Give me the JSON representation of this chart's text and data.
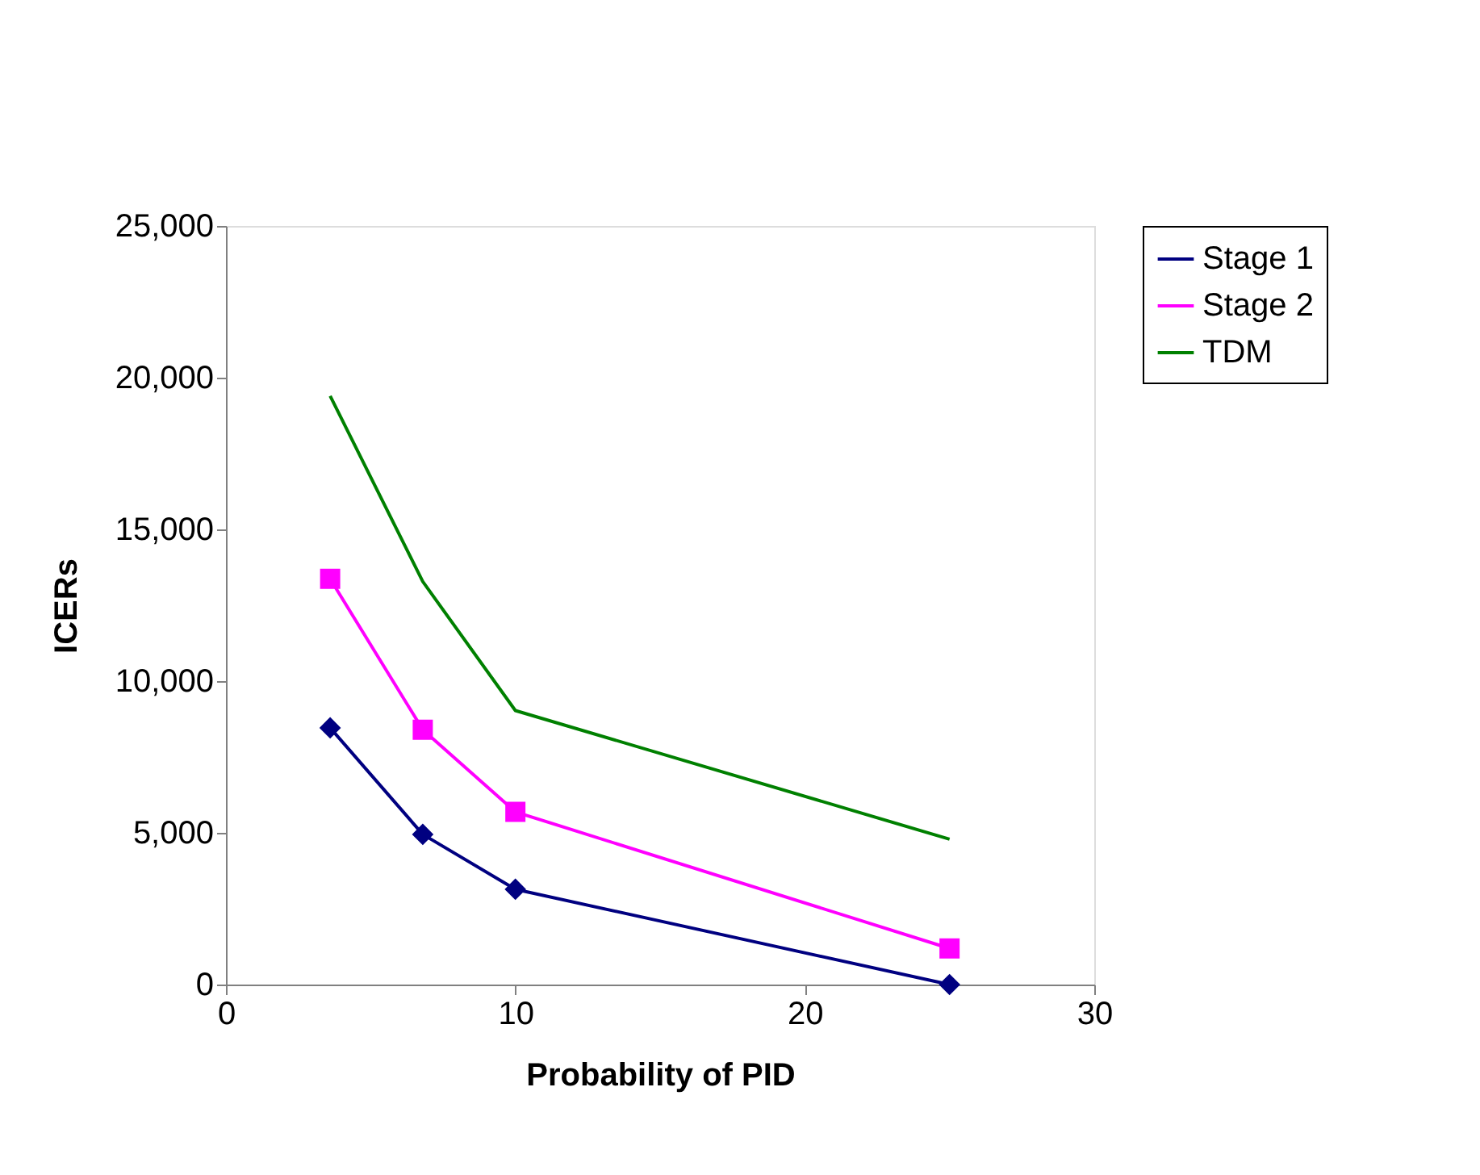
{
  "chart_data": {
    "type": "line",
    "xlabel": "Probability of PID",
    "ylabel": "ICERs",
    "x": [
      3.6,
      6.8,
      10,
      25
    ],
    "series": [
      {
        "name": "Stage 1",
        "color": "#000080",
        "marker": "diamond",
        "values": [
          8460,
          4950,
          3140,
          0
        ]
      },
      {
        "name": "Stage 2",
        "color": "#ff00ff",
        "marker": "square",
        "values": [
          13370,
          8400,
          5690,
          1190
        ]
      },
      {
        "name": "TDM",
        "color": "#008000",
        "marker": "none",
        "values": [
          19400,
          13280,
          9030,
          4790
        ]
      }
    ],
    "xlim": [
      0,
      30
    ],
    "xticks": [
      0,
      10,
      20,
      30
    ],
    "ylim": [
      0,
      25000
    ],
    "yticks": [
      {
        "value": 0,
        "label": "0"
      },
      {
        "value": 5000,
        "label": "5,000"
      },
      {
        "value": 10000,
        "label": "10,000"
      },
      {
        "value": 15000,
        "label": "15,000"
      },
      {
        "value": 20000,
        "label": "20,000"
      },
      {
        "value": 25000,
        "label": "25,000"
      }
    ],
    "grid": false,
    "legend": "right",
    "line_style": "solid"
  }
}
